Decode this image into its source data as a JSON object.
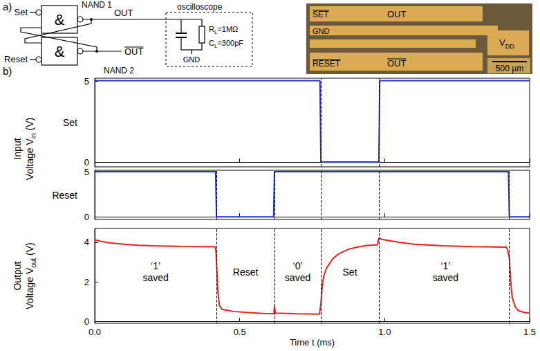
{
  "panel_a": {
    "label": "a)",
    "gates": [
      {
        "name": "NAND 1",
        "symbol": "&",
        "input": "Set",
        "output": {
          "text": "OUT",
          "overline": false
        }
      },
      {
        "name": "NAND 2",
        "symbol": "&",
        "input": "Reset",
        "output": {
          "text": "OUT",
          "overline": true
        }
      }
    ],
    "oscilloscope": {
      "title": "oscilloscope",
      "resistor": {
        "base": "R",
        "sub": "L",
        "tail": "=1MΩ"
      },
      "capacitor": {
        "base": "C",
        "sub": "L",
        "tail": "=300pF"
      },
      "ground": "GND"
    },
    "photo": {
      "labels": [
        {
          "text": "SET",
          "overline": true
        },
        {
          "text": "OUT",
          "overline": false
        },
        {
          "text": "GND",
          "overline": false
        },
        {
          "base": "V",
          "sub": "DD",
          "tail": ""
        },
        {
          "text": "RESET",
          "overline": true
        },
        {
          "text": "OUT",
          "overline": true
        }
      ],
      "scale_bar": "500 µm"
    }
  },
  "panel_b": {
    "label": "b)",
    "input_ylabel": {
      "lines": [
        "Input",
        "Voltage V"
      ],
      "sub": "in",
      "tail": " (V)"
    },
    "output_ylabel": {
      "lines": [
        "Output",
        "Voltage V"
      ],
      "sub": "out",
      "tail": " (V)"
    }
  },
  "chart_data": [
    {
      "type": "line",
      "x": [
        0,
        0.777,
        0.78,
        0.98,
        0.983,
        1.5
      ],
      "series": [
        {
          "name": "Set",
          "color": "#2030d0",
          "values": [
            5.05,
            5.05,
            0,
            0,
            5.05,
            5.05
          ]
        }
      ],
      "xlim": [
        0,
        1.5
      ],
      "xticks": [
        {
          "value": 0,
          "label": "0.0"
        },
        {
          "value": 0.5,
          "label": "0.5"
        },
        {
          "value": 1,
          "label": "1.0"
        },
        {
          "value": 1.5,
          "label": "1.5"
        }
      ],
      "ylim": [
        -0.3,
        5.2
      ],
      "yticks": [
        0,
        5
      ],
      "grid": false,
      "tick_labels": "y",
      "transitions": [
        0.78,
        0.98
      ]
    },
    {
      "type": "line",
      "x": [
        0,
        0.417,
        0.42,
        0.617,
        0.62,
        1.427,
        1.43,
        1.5
      ],
      "series": [
        {
          "name": "Reset",
          "color": "#2030d0",
          "values": [
            5.05,
            5.05,
            0,
            0,
            5.05,
            5.05,
            0,
            0
          ]
        }
      ],
      "xlim": [
        0,
        1.5
      ],
      "xticks": [
        {
          "value": 0,
          "label": "0.0"
        },
        {
          "value": 0.5,
          "label": "0.5"
        },
        {
          "value": 1,
          "label": "1.0"
        },
        {
          "value": 1.5,
          "label": "1.5"
        }
      ],
      "ylim": [
        -0.3,
        5.2
      ],
      "yticks": [
        0,
        5
      ],
      "grid": false,
      "tick_labels": "y",
      "transitions": [
        0.42,
        0.62,
        0.78,
        0.98,
        1.43
      ]
    },
    {
      "type": "line",
      "x": [
        0,
        0.02,
        0.05,
        0.1,
        0.15,
        0.2,
        0.3,
        0.415,
        0.418,
        0.42,
        0.425,
        0.43,
        0.44,
        0.48,
        0.53,
        0.58,
        0.618,
        0.62,
        0.623,
        0.7,
        0.775,
        0.78,
        0.785,
        0.79,
        0.8,
        0.82,
        0.84,
        0.86,
        0.88,
        0.91,
        0.94,
        0.975,
        0.98,
        0.99,
        1.05,
        1.1,
        1.2,
        1.3,
        1.42,
        1.424,
        1.43,
        1.435,
        1.44,
        1.45,
        1.46,
        1.48,
        1.5
      ],
      "values": [
        4.12,
        4.05,
        3.97,
        3.9,
        3.85,
        3.82,
        3.79,
        3.77,
        3.6,
        3.0,
        1.5,
        0.8,
        0.6,
        0.5,
        0.44,
        0.4,
        0.39,
        0.75,
        0.42,
        0.38,
        0.36,
        0.9,
        1.8,
        2.3,
        2.7,
        3.15,
        3.4,
        3.55,
        3.67,
        3.77,
        3.84,
        3.87,
        4.22,
        4.15,
        4.0,
        3.9,
        3.82,
        3.78,
        3.75,
        3.6,
        3.2,
        2.0,
        1.2,
        0.75,
        0.55,
        0.45,
        0.42
      ],
      "color": "#e8221a",
      "xlim": [
        0,
        1.5
      ],
      "xticks": [
        {
          "value": 0,
          "label": "0.0"
        },
        {
          "value": 0.5,
          "label": "0.5"
        },
        {
          "value": 1,
          "label": "1.0"
        },
        {
          "value": 1.5,
          "label": "1.5"
        }
      ],
      "ylim": [
        -0.1,
        4.7
      ],
      "yticks": [
        0,
        2,
        4
      ],
      "xlabel": "Time t (ms)",
      "grid": false,
      "tick_labels": true,
      "transitions": [
        0.42,
        0.62,
        0.78,
        0.98,
        1.43
      ],
      "annotations": [
        {
          "text": "‘1’ saved",
          "x": 0.21,
          "y": 2.5
        },
        {
          "text": "Reset",
          "x": 0.52,
          "y": 2.5
        },
        {
          "text": "‘0’ saved",
          "x": 0.7,
          "y": 2.5
        },
        {
          "text": "Set",
          "x": 0.88,
          "y": 2.5
        },
        {
          "text": "‘1’ saved",
          "x": 1.21,
          "y": 2.5
        }
      ]
    }
  ]
}
